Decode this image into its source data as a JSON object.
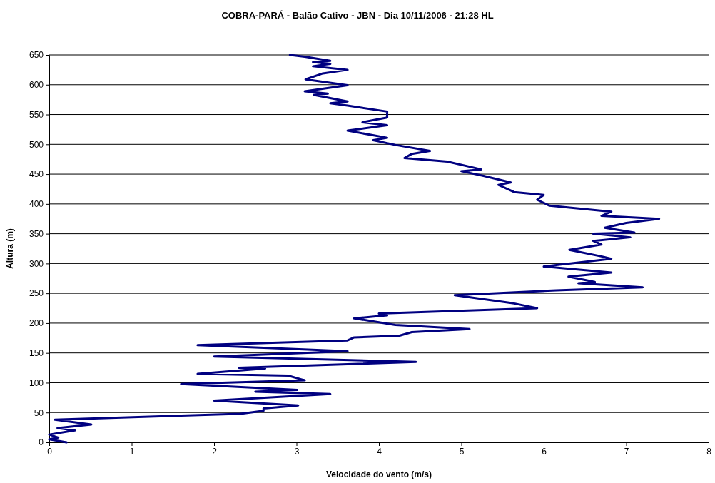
{
  "chart_data": {
    "type": "line",
    "title": "COBRA-PARÁ - Balão Cativo - JBN - Dia 10/11/2006 - 21:28 HL",
    "xlabel": "Velocidade do vento (m/s)",
    "ylabel": "Altura (m)",
    "x": [
      0.21,
      0.0,
      0.11,
      0.0,
      0.31,
      0.1,
      0.51,
      0.07,
      2.32,
      2.6,
      2.6,
      3.02,
      2.0,
      3.41,
      2.5,
      3.01,
      1.6,
      3.1,
      2.9,
      1.8,
      2.62,
      2.3,
      4.45,
      2.0,
      3.62,
      1.8,
      3.62,
      3.7,
      4.25,
      4.4,
      5.1,
      4.2,
      3.7,
      4.1,
      4.0,
      5.92,
      5.64,
      4.92,
      6.15,
      7.2,
      6.42,
      6.62,
      6.3,
      6.82,
      6.0,
      6.82,
      6.7,
      6.31,
      6.7,
      6.6,
      7.05,
      6.6,
      7.1,
      6.74,
      7.0,
      7.4,
      6.7,
      6.82,
      6.07,
      5.92,
      6.0,
      5.64,
      5.45,
      5.6,
      5.27,
      5.0,
      5.24,
      4.83,
      4.31,
      4.4,
      4.62,
      4.2,
      3.93,
      4.1,
      3.62,
      4.1,
      3.8,
      4.1,
      4.1,
      3.62,
      3.41,
      3.62,
      3.21,
      3.38,
      3.1,
      3.62,
      3.11,
      3.32,
      3.62,
      3.2,
      3.41,
      3.2,
      3.41,
      3.1,
      2.92
    ],
    "series": [
      {
        "color": "#000080",
        "values": [
          0,
          5,
          8,
          13,
          20,
          24,
          30,
          38,
          48,
          53,
          57,
          62,
          70,
          81,
          85,
          88,
          98,
          104,
          112,
          115,
          124,
          125,
          135,
          144,
          153,
          163,
          171,
          176,
          179,
          185,
          190,
          197,
          208,
          213,
          216,
          225,
          233,
          247,
          255,
          260,
          267,
          269,
          278,
          285,
          295,
          308,
          312,
          323,
          332,
          338,
          344,
          350,
          352,
          360,
          368,
          375,
          380,
          387,
          397,
          407,
          415,
          420,
          432,
          436,
          447,
          455,
          458,
          471,
          477,
          484,
          489,
          499,
          507,
          511,
          523,
          532,
          537,
          545,
          555,
          565,
          569,
          572,
          583,
          585,
          589,
          599,
          609,
          619,
          625,
          631,
          635,
          638,
          640,
          647,
          650
        ]
      }
    ],
    "xlim": [
      0,
      8
    ],
    "xticks": [
      0,
      1,
      2,
      3,
      4,
      5,
      6,
      7,
      8
    ],
    "ylim": [
      0,
      650
    ],
    "yticks": [
      0,
      50,
      100,
      150,
      200,
      250,
      300,
      350,
      400,
      450,
      500,
      550,
      600,
      650
    ],
    "grid": "y",
    "marker": "none",
    "line_style": "solid"
  }
}
